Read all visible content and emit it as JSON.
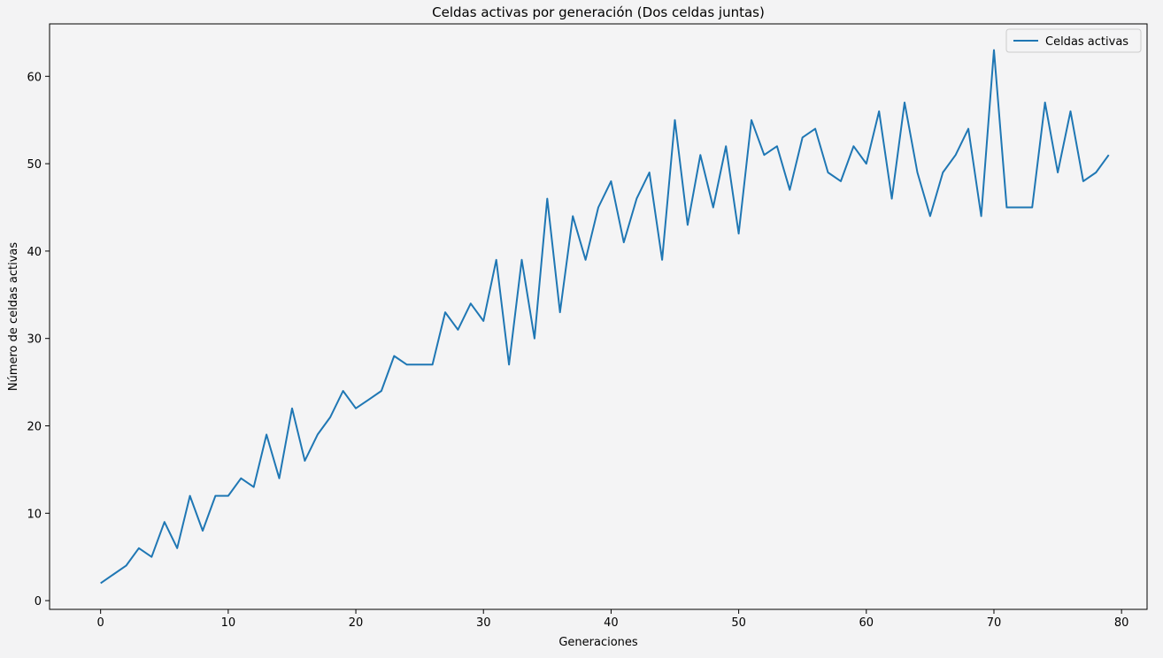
{
  "chart_data": {
    "type": "line",
    "title": "Celdas activas por generación (Dos celdas juntas)",
    "xlabel": "Generaciones",
    "ylabel": "Número de celdas activas",
    "xlim": [
      -4,
      82
    ],
    "ylim": [
      -1,
      66
    ],
    "xticks": [
      0,
      10,
      20,
      30,
      40,
      50,
      60,
      70,
      80
    ],
    "yticks": [
      0,
      10,
      20,
      30,
      40,
      50,
      60
    ],
    "grid": false,
    "legend_position": "top-right",
    "series": [
      {
        "name": "Celdas activas",
        "color": "#1f77b4",
        "x": [
          0,
          1,
          2,
          3,
          4,
          5,
          6,
          7,
          8,
          9,
          10,
          11,
          12,
          13,
          14,
          15,
          16,
          17,
          18,
          19,
          20,
          21,
          22,
          23,
          24,
          25,
          26,
          27,
          28,
          29,
          30,
          31,
          32,
          33,
          34,
          35,
          36,
          37,
          38,
          39,
          40,
          41,
          42,
          43,
          44,
          45,
          46,
          47,
          48,
          49,
          50,
          51,
          52,
          53,
          54,
          55,
          56,
          57,
          58,
          59,
          60,
          61,
          62,
          63,
          64,
          65,
          66,
          67,
          68,
          69,
          70,
          71,
          72,
          73,
          74,
          75,
          76,
          77,
          78,
          79
        ],
        "y": [
          2,
          3,
          4,
          6,
          5,
          9,
          6,
          12,
          8,
          12,
          12,
          14,
          13,
          19,
          14,
          22,
          16,
          19,
          21,
          24,
          22,
          23,
          24,
          28,
          27,
          27,
          27,
          33,
          31,
          34,
          32,
          39,
          27,
          39,
          30,
          46,
          33,
          44,
          39,
          45,
          48,
          41,
          46,
          49,
          39,
          55,
          43,
          51,
          45,
          52,
          42,
          55,
          51,
          52,
          47,
          53,
          54,
          49,
          48,
          52,
          50,
          56,
          46,
          57,
          49,
          44,
          49,
          51,
          54,
          44,
          63,
          45,
          45,
          45,
          57,
          49,
          56,
          48,
          49,
          51
        ]
      }
    ]
  }
}
